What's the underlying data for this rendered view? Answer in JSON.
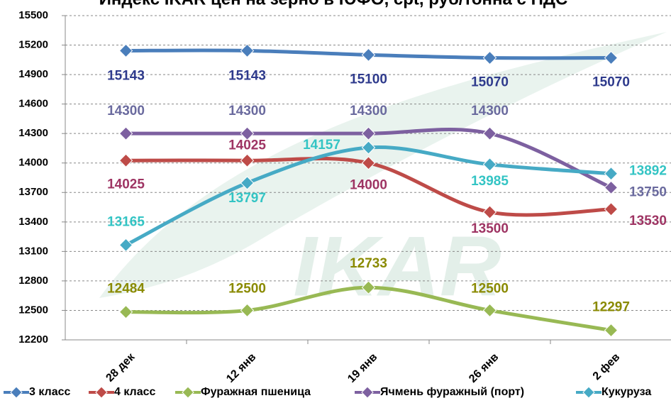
{
  "chart_data": {
    "type": "line",
    "title": "Индекс IKAR цен на зерно в ЮФО, cpt, руб/тонна с НДС",
    "watermark": "IKAR",
    "categories": [
      "28 дек",
      "12 янв",
      "19 янв",
      "26 янв",
      "2 фев"
    ],
    "series": [
      {
        "name": "3 класс",
        "color": "#4a7ebb",
        "label_color": "#2e3a8c",
        "values": [
          15143,
          15143,
          15100,
          15070,
          15070
        ]
      },
      {
        "name": "4 класс",
        "color": "#be4b48",
        "label_color": "#9e3463",
        "values": [
          14025,
          14025,
          14000,
          13500,
          13530
        ]
      },
      {
        "name": "Фуражная пшеница",
        "color": "#98b954",
        "label_color": "#8a8a00",
        "values": [
          12484,
          12500,
          12733,
          12500,
          12297
        ]
      },
      {
        "name": "Ячмень фуражный (порт)",
        "color": "#7d60a0",
        "label_color": "#6a6a9e",
        "values": [
          14300,
          14300,
          14300,
          14300,
          13750
        ]
      },
      {
        "name": "Кукуруза",
        "color": "#46aac5",
        "label_color": "#33c4c4",
        "values": [
          13165,
          13797,
          14157,
          13985,
          13892
        ]
      }
    ],
    "ylim": [
      12200,
      15500
    ],
    "yticks": [
      12200,
      12500,
      12800,
      13100,
      13400,
      13700,
      14000,
      14300,
      14600,
      14900,
      15200,
      15500
    ],
    "grid": true,
    "smooth": true,
    "legend": "bottom"
  }
}
